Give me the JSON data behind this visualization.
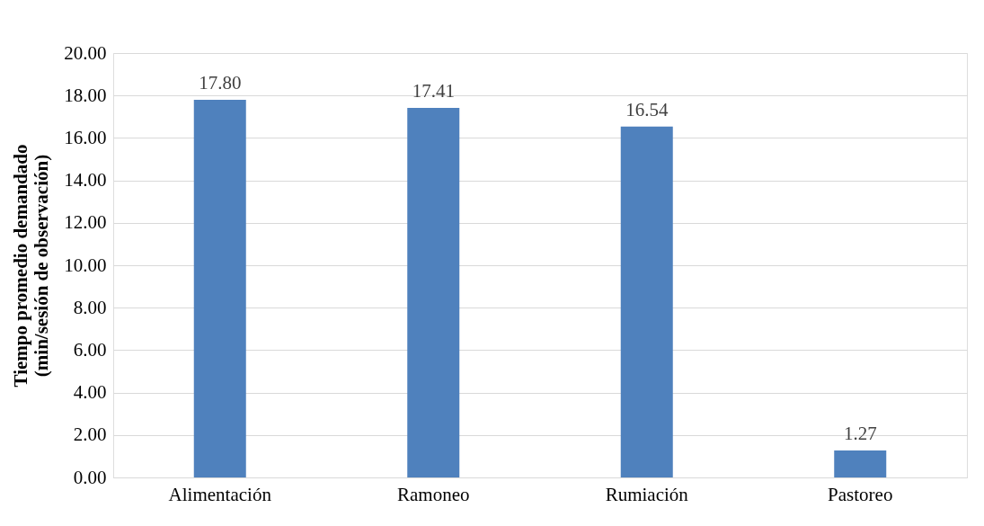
{
  "chart_data": {
    "type": "bar",
    "ylabel": "Tiempo promedio demandado\n(min/sesión de observación)",
    "categories": [
      "Alimentación",
      "Ramoneo",
      "Rumiación",
      "Pastoreo"
    ],
    "values": [
      17.8,
      17.41,
      16.54,
      1.27
    ],
    "value_labels": [
      "17.80",
      "17.41",
      "16.54",
      "1.27"
    ],
    "color": "#4f81bd",
    "ylim": [
      0,
      20
    ],
    "yticks": [
      {
        "value": 0,
        "label": "0.00"
      },
      {
        "value": 2,
        "label": "2.00"
      },
      {
        "value": 4,
        "label": "4.00"
      },
      {
        "value": 6,
        "label": "6.00"
      },
      {
        "value": 8,
        "label": "8.00"
      },
      {
        "value": 10,
        "label": "10.00"
      },
      {
        "value": 12,
        "label": "12.00"
      },
      {
        "value": 14,
        "label": "14.00"
      },
      {
        "value": 16,
        "label": "16.00"
      },
      {
        "value": 18,
        "label": "18.00"
      },
      {
        "value": 20,
        "label": "20.00"
      }
    ],
    "grid": "y"
  }
}
